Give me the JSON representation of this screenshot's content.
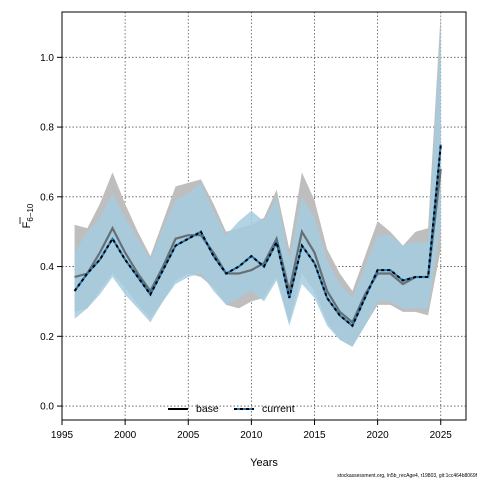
{
  "chart_data": {
    "type": "line",
    "xlabel": "Years",
    "ylabel_main": "F",
    "ylabel_sub": "6−10",
    "xlim": [
      1995,
      2027
    ],
    "ylim": [
      -0.04,
      1.13
    ],
    "xticks": [
      "1995",
      "2000",
      "2005",
      "2010",
      "2015",
      "2020",
      "2025"
    ],
    "yticks": [
      "0.0",
      "0.2",
      "0.4",
      "0.6",
      "0.8",
      "1.0"
    ],
    "grid": true,
    "legend_position": "bottom-center",
    "footer": "stockassessment.org, ln5b_recAge4, r19803, git:1cc464b8069f",
    "colors": {
      "base_band": "#bebebe",
      "base_line": "#505050",
      "current_band": "#a6cde0",
      "current_line": "#000000",
      "current_line_secondary": "#1f77b4",
      "overlap_band": "#8fb5c8"
    },
    "x": [
      1996,
      1997,
      1998,
      1999,
      2000,
      2001,
      2002,
      2003,
      2004,
      2005,
      2006,
      2007,
      2008,
      2009,
      2010,
      2011,
      2012,
      2013,
      2014,
      2015,
      2016,
      2017,
      2018,
      2019,
      2020,
      2021,
      2022,
      2023,
      2024,
      2025
    ],
    "series": [
      {
        "name": "base",
        "values": [
          0.37,
          0.38,
          0.44,
          0.51,
          0.44,
          0.38,
          0.33,
          0.4,
          0.48,
          0.49,
          0.49,
          0.44,
          0.38,
          0.38,
          0.39,
          0.41,
          0.48,
          0.33,
          0.5,
          0.44,
          0.33,
          0.27,
          0.24,
          0.32,
          0.38,
          0.38,
          0.35,
          0.37,
          0.37,
          0.68
        ],
        "lower": [
          0.27,
          0.28,
          0.33,
          0.38,
          0.34,
          0.29,
          0.25,
          0.3,
          0.36,
          0.38,
          0.37,
          0.34,
          0.29,
          0.28,
          0.3,
          0.31,
          0.37,
          0.24,
          0.38,
          0.33,
          0.24,
          0.19,
          0.17,
          0.23,
          0.29,
          0.29,
          0.27,
          0.27,
          0.26,
          0.45
        ],
        "upper": [
          0.52,
          0.51,
          0.58,
          0.67,
          0.58,
          0.5,
          0.43,
          0.53,
          0.63,
          0.64,
          0.65,
          0.58,
          0.5,
          0.51,
          0.52,
          0.54,
          0.62,
          0.45,
          0.67,
          0.59,
          0.45,
          0.38,
          0.33,
          0.43,
          0.53,
          0.5,
          0.46,
          0.5,
          0.51,
          1.13
        ]
      },
      {
        "name": "current",
        "values": [
          0.33,
          0.38,
          0.42,
          0.48,
          0.42,
          0.37,
          0.32,
          0.39,
          0.46,
          0.48,
          0.5,
          0.43,
          0.38,
          0.4,
          0.43,
          0.4,
          0.47,
          0.31,
          0.46,
          0.41,
          0.31,
          0.26,
          0.23,
          0.31,
          0.39,
          0.39,
          0.36,
          0.37,
          0.37,
          0.75
        ],
        "lower": [
          0.25,
          0.28,
          0.32,
          0.37,
          0.32,
          0.28,
          0.24,
          0.3,
          0.35,
          0.37,
          0.38,
          0.33,
          0.29,
          0.31,
          0.33,
          0.3,
          0.36,
          0.23,
          0.35,
          0.31,
          0.23,
          0.19,
          0.17,
          0.23,
          0.3,
          0.3,
          0.28,
          0.28,
          0.28,
          0.52
        ],
        "upper": [
          0.44,
          0.5,
          0.54,
          0.61,
          0.54,
          0.48,
          0.42,
          0.51,
          0.59,
          0.61,
          0.64,
          0.56,
          0.49,
          0.53,
          0.56,
          0.53,
          0.6,
          0.42,
          0.6,
          0.54,
          0.42,
          0.35,
          0.31,
          0.4,
          0.49,
          0.49,
          0.46,
          0.47,
          0.47,
          1.09
        ]
      }
    ]
  }
}
